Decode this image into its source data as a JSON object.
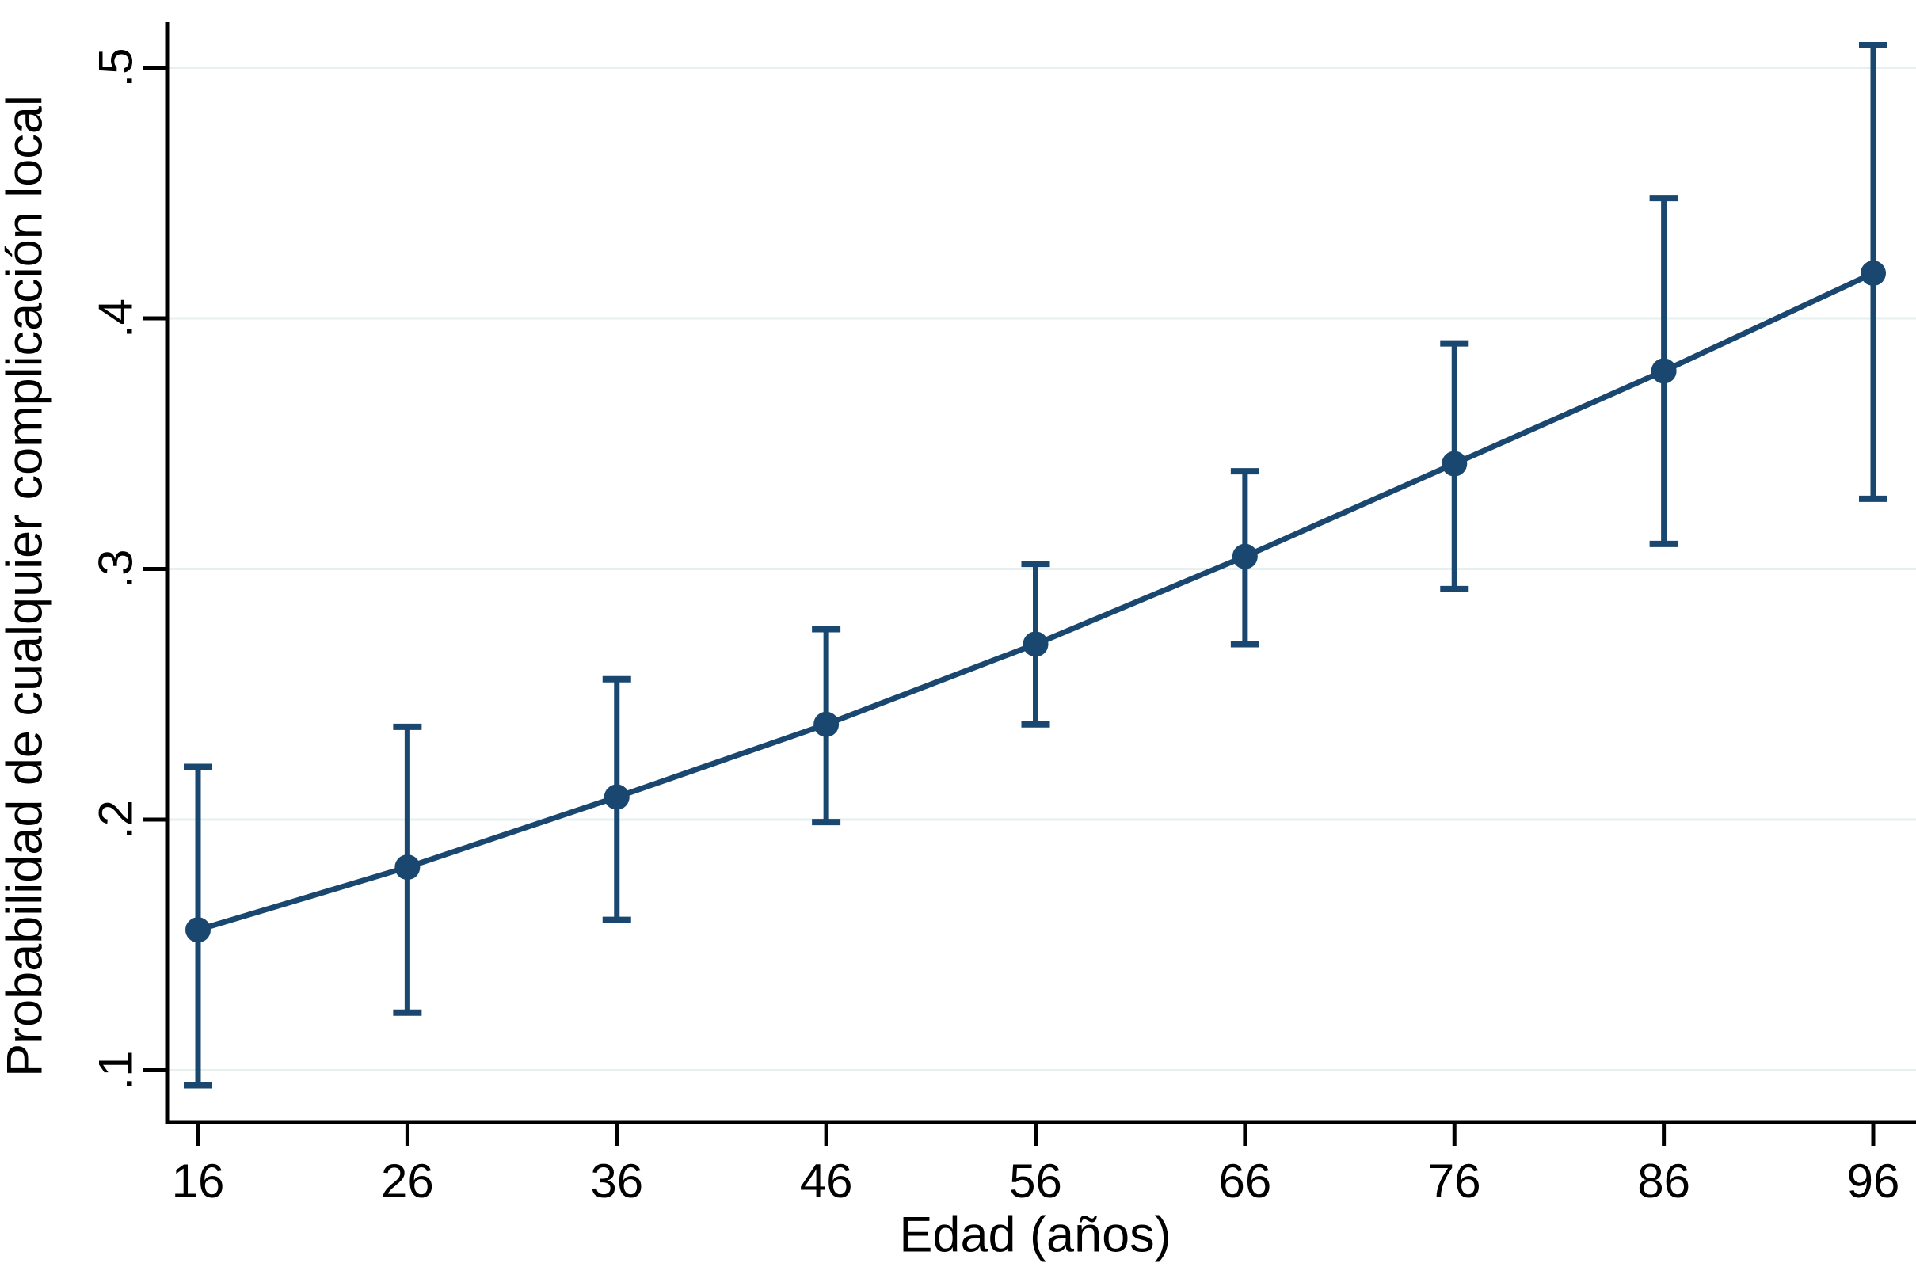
{
  "chart_data": {
    "type": "line",
    "title": "",
    "xlabel": "Edad (años)",
    "ylabel": "Probabilidad de cualquier complicación local",
    "x": [
      16,
      26,
      36,
      46,
      56,
      66,
      76,
      86,
      96
    ],
    "series": [
      {
        "values": [
          0.156,
          0.181,
          0.209,
          0.238,
          0.27,
          0.305,
          0.342,
          0.379,
          0.418
        ],
        "ci_lower": [
          0.094,
          0.123,
          0.16,
          0.199,
          0.238,
          0.27,
          0.292,
          0.31,
          0.328
        ],
        "ci_upper": [
          0.221,
          0.237,
          0.256,
          0.276,
          0.302,
          0.339,
          0.39,
          0.448,
          0.509
        ]
      }
    ],
    "xtick_labels": [
      "16",
      "26",
      "36",
      "46",
      "56",
      "66",
      "76",
      "86",
      "96"
    ],
    "ytick_labels": [
      ".1",
      ".2",
      ".3",
      ".4",
      ".5"
    ],
    "ytick_values": [
      0.1,
      0.2,
      0.3,
      0.4,
      0.5
    ],
    "xlim": [
      14.6,
      98.1
    ],
    "ylim": [
      0.079,
      0.518
    ],
    "grid": "horizontal",
    "legend": "none",
    "ytick_label_rotation_deg": -90,
    "colors": {
      "series": "#1A476F",
      "grid": "#E6F0F1",
      "axis": "#000000",
      "text": "#000000",
      "background": "#FFFFFF"
    }
  }
}
